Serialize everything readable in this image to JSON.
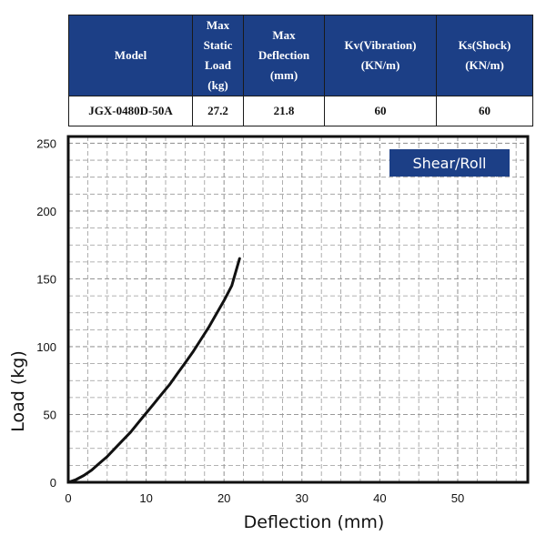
{
  "table": {
    "headers": [
      [
        "Model"
      ],
      [
        "Max",
        "Static",
        "Load",
        "(kg)"
      ],
      [
        "Max",
        "Deflection",
        "(mm)"
      ],
      [
        "Kv(Vibration)",
        "(KN/m)"
      ],
      [
        "Ks(Shock)",
        "(KN/m)"
      ]
    ],
    "row": {
      "model": "JGX-0480D-50A",
      "max_static_load": "27.2",
      "max_deflection": "21.8",
      "kv": "60",
      "ks": "60"
    }
  },
  "colors": {
    "header_background": "#1c3f86",
    "badge_background": "#1c3f86",
    "curve": "#111111",
    "grid": "#999999"
  },
  "chart_data": {
    "type": "line",
    "title": "",
    "badge": "Shear/Roll",
    "xlabel": "Deflection (mm)",
    "ylabel": "Load (kg)",
    "xlim": [
      0,
      59
    ],
    "ylim": [
      0,
      255
    ],
    "grid": true,
    "x_ticks": [
      0,
      10,
      20,
      30,
      40,
      50
    ],
    "y_ticks": [
      0,
      50,
      100,
      150,
      200,
      250
    ],
    "x_tick_labels": [
      "0",
      "10",
      "20",
      "30",
      "40",
      "50"
    ],
    "y_tick_labels": [
      "0",
      "50",
      "100",
      "150",
      "200",
      "250"
    ],
    "series": [
      {
        "x": [
          0,
          1,
          2,
          3,
          4,
          5,
          6,
          7,
          8,
          9,
          10,
          11,
          12,
          13,
          14,
          15,
          16,
          17,
          18,
          19,
          20,
          21,
          22
        ],
        "y": [
          0,
          2,
          5,
          9,
          14,
          19,
          25,
          31,
          37,
          44,
          51,
          58,
          65,
          72,
          80,
          88,
          96,
          105,
          114,
          124,
          134,
          145,
          165
        ]
      }
    ]
  }
}
